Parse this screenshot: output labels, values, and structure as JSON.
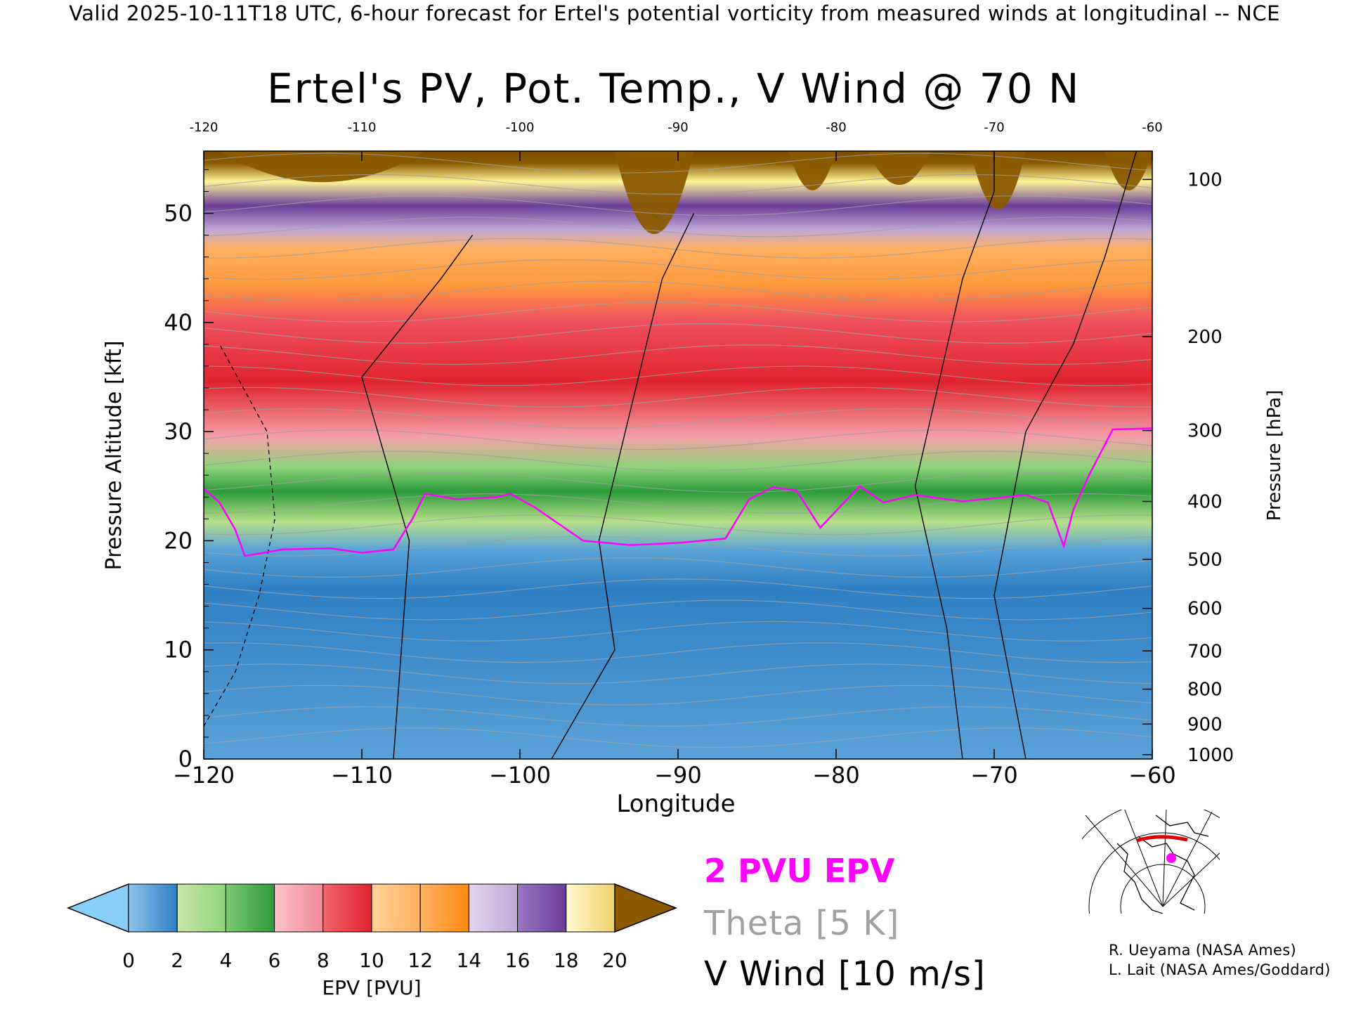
{
  "header": {
    "text": "Valid 2025-10-11T18 UTC, 6-hour forecast for Ertel's potential vorticity from measured winds at longitudinal -- NCE"
  },
  "chart_data": {
    "type": "heatmap",
    "title": "Ertel's PV, Pot. Temp., V Wind @ 70 N",
    "xlabel": "Longitude",
    "ylabel": "Pressure Altitude [kft]",
    "y2label": "Pressure [hPa]",
    "xlim": [
      -120,
      -60
    ],
    "ylim": [
      0,
      55.7
    ],
    "x_ticks": [
      -120,
      -110,
      -100,
      -90,
      -80,
      -70,
      -60
    ],
    "x_tick_labels": [
      "−120",
      "−110",
      "−100",
      "−90",
      "−80",
      "−70",
      "−60"
    ],
    "top_x_tick_labels": [
      "-120",
      "-110",
      "-100",
      "-90",
      "-80",
      "-70",
      "-60"
    ],
    "y_ticks": [
      0,
      10,
      20,
      30,
      40,
      50
    ],
    "y_tick_labels": [
      "0",
      "10",
      "20",
      "30",
      "40",
      "50"
    ],
    "pressure_ticks": [
      {
        "label": "100",
        "kft": 53.1
      },
      {
        "label": "200",
        "kft": 38.7
      },
      {
        "label": "300",
        "kft": 30.1
      },
      {
        "label": "400",
        "kft": 23.6
      },
      {
        "label": "500",
        "kft": 18.3
      },
      {
        "label": "600",
        "kft": 13.8
      },
      {
        "label": "700",
        "kft": 9.9
      },
      {
        "label": "800",
        "kft": 6.4
      },
      {
        "label": "900",
        "kft": 3.2
      },
      {
        "label": "1000",
        "kft": 0.4
      }
    ],
    "pv2_boundary_kft": [
      {
        "x": -120,
        "y": 24.8
      },
      {
        "x": -119,
        "y": 23.5
      },
      {
        "x": -118,
        "y": 21
      },
      {
        "x": -117.4,
        "y": 18.6
      },
      {
        "x": -115,
        "y": 19.2
      },
      {
        "x": -112,
        "y": 19.3
      },
      {
        "x": -110,
        "y": 18.9
      },
      {
        "x": -108,
        "y": 19.2
      },
      {
        "x": -106.8,
        "y": 22
      },
      {
        "x": -106,
        "y": 24.3
      },
      {
        "x": -104,
        "y": 23.8
      },
      {
        "x": -101.4,
        "y": 24
      },
      {
        "x": -100.6,
        "y": 24.3
      },
      {
        "x": -99,
        "y": 23
      },
      {
        "x": -96,
        "y": 20
      },
      {
        "x": -93,
        "y": 19.6
      },
      {
        "x": -90,
        "y": 19.8
      },
      {
        "x": -87,
        "y": 20.2
      },
      {
        "x": -85.5,
        "y": 23.8
      },
      {
        "x": -84,
        "y": 24.9
      },
      {
        "x": -82.5,
        "y": 24.6
      },
      {
        "x": -81,
        "y": 21.2
      },
      {
        "x": -79.5,
        "y": 23.5
      },
      {
        "x": -78.5,
        "y": 25
      },
      {
        "x": -77,
        "y": 23.5
      },
      {
        "x": -75,
        "y": 24.2
      },
      {
        "x": -72,
        "y": 23.6
      },
      {
        "x": -68,
        "y": 24.2
      },
      {
        "x": -66.6,
        "y": 23.5
      },
      {
        "x": -65.6,
        "y": 19.5
      },
      {
        "x": -65,
        "y": 22.8
      },
      {
        "x": -64,
        "y": 26
      },
      {
        "x": -62.5,
        "y": 30.2
      },
      {
        "x": -60,
        "y": 30.3
      }
    ],
    "colorbar": {
      "label": "EPV [PVU]",
      "min": 0,
      "max": 20,
      "step": 2,
      "tick_labels": [
        "0",
        "2",
        "4",
        "6",
        "8",
        "10",
        "12",
        "14",
        "16",
        "18",
        "20"
      ]
    },
    "legend": [
      {
        "label": "2 PVU EPV",
        "color": "#ff00ff"
      },
      {
        "label": "Theta [5 K]",
        "color": "#a0a0a0"
      },
      {
        "label": "V Wind [10 m/s]",
        "color": "#000000"
      }
    ]
  },
  "colors": {
    "epv": [
      "#87cefa",
      "#2e7fc3",
      "#8fd47a",
      "#2c9b3a",
      "#f08a95",
      "#e0232e",
      "#ffb060",
      "#ff8a10",
      "#c1a9d6",
      "#6b3d99",
      "#fff599",
      "#8b5a00"
    ],
    "pv2": "#ff00ff",
    "theta": "#a0a0a0",
    "wind": "#000000"
  },
  "credits": [
    "R. Ueyama (NASA Ames)",
    "L. Lait (NASA Ames/Goddard)"
  ]
}
